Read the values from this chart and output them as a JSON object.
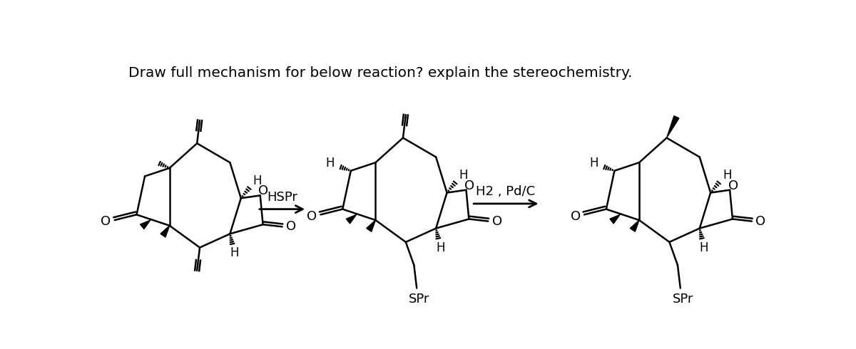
{
  "title": "Draw full mechanism for below reaction? explain the stereochemistry.",
  "title_fontsize": 14.5,
  "title_fontweight": "normal",
  "background": "#ffffff",
  "arrow1_label": "HSPr",
  "arrow2_label": "H2 , Pd/C",
  "line_color": "#000000",
  "line_width": 1.8
}
